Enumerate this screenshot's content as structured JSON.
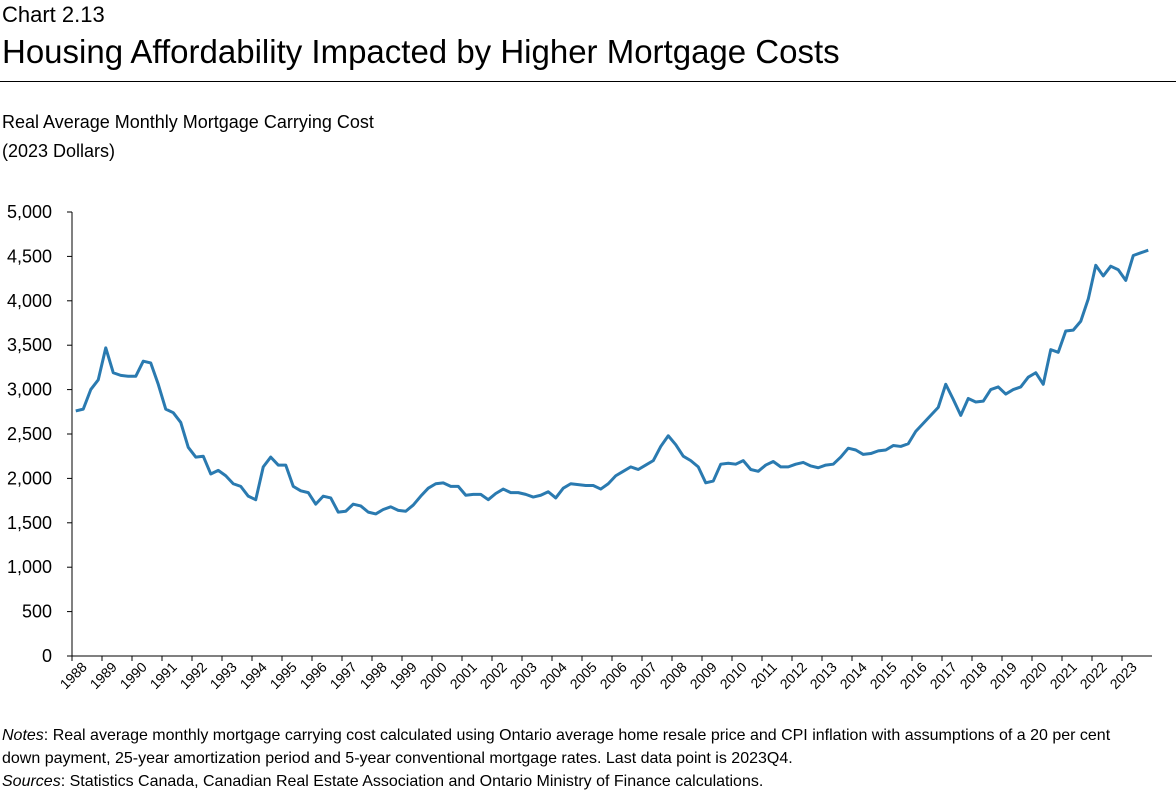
{
  "chart_data": {
    "type": "line",
    "chart_number": "Chart 2.13",
    "title": "Housing Affordability Impacted by Higher Mortgage Costs",
    "y_axis_label": "Real Average Monthly Mortgage Carrying Cost",
    "y_axis_unit": "(2023 Dollars)",
    "categories": [
      "1988",
      null,
      null,
      null,
      "1989",
      null,
      null,
      null,
      "1990",
      null,
      null,
      null,
      "1991",
      null,
      null,
      null,
      "1992",
      null,
      null,
      null,
      "1993",
      null,
      null,
      null,
      "1994",
      null,
      null,
      null,
      "1995",
      null,
      null,
      null,
      "1996",
      null,
      null,
      null,
      "1997",
      null,
      null,
      null,
      "1998",
      null,
      null,
      null,
      "1999",
      null,
      null,
      null,
      "2000",
      null,
      null,
      null,
      "2001",
      null,
      null,
      null,
      "2002",
      null,
      null,
      null,
      "2003",
      null,
      null,
      null,
      "2004",
      null,
      null,
      null,
      "2005",
      null,
      null,
      null,
      "2006",
      null,
      null,
      null,
      "2007",
      null,
      null,
      null,
      "2008",
      null,
      null,
      null,
      "2009",
      null,
      null,
      null,
      "2010",
      null,
      null,
      null,
      "2011",
      null,
      null,
      null,
      "2012",
      null,
      null,
      null,
      "2013",
      null,
      null,
      null,
      "2014",
      null,
      null,
      null,
      "2015",
      null,
      null,
      null,
      "2016",
      null,
      null,
      null,
      "2017",
      null,
      null,
      null,
      "2018",
      null,
      null,
      null,
      "2019",
      null,
      null,
      null,
      "2020",
      null,
      null,
      null,
      "2021",
      null,
      null,
      null,
      "2022",
      null,
      null,
      null,
      "2023",
      null,
      null,
      null
    ],
    "series": [
      {
        "name": "Real Average Monthly Mortgage Carrying Cost",
        "color": "#2a7ab0",
        "values": [
          2760,
          2780,
          3000,
          3110,
          3470,
          3190,
          3160,
          3150,
          3150,
          3320,
          3300,
          3060,
          2780,
          2740,
          2630,
          2350,
          2240,
          2250,
          2050,
          2090,
          2030,
          1940,
          1910,
          1800,
          1760,
          2130,
          2240,
          2150,
          2150,
          1910,
          1860,
          1840,
          1710,
          1800,
          1780,
          1620,
          1630,
          1710,
          1690,
          1620,
          1600,
          1650,
          1680,
          1640,
          1630,
          1700,
          1800,
          1890,
          1940,
          1950,
          1910,
          1910,
          1810,
          1820,
          1820,
          1760,
          1830,
          1880,
          1840,
          1840,
          1820,
          1790,
          1810,
          1850,
          1780,
          1890,
          1940,
          1930,
          1920,
          1920,
          1880,
          1940,
          2030,
          2080,
          2130,
          2100,
          2150,
          2200,
          2360,
          2480,
          2380,
          2250,
          2200,
          2130,
          1950,
          1970,
          2160,
          2170,
          2160,
          2200,
          2100,
          2080,
          2150,
          2190,
          2130,
          2130,
          2160,
          2180,
          2140,
          2120,
          2150,
          2160,
          2240,
          2340,
          2320,
          2270,
          2280,
          2310,
          2320,
          2370,
          2360,
          2390,
          2530,
          2620,
          2710,
          2800,
          3060,
          2890,
          2710,
          2900,
          2860,
          2870,
          3000,
          3030,
          2950,
          3000,
          3030,
          3140,
          3190,
          3060,
          3450,
          3420,
          3660,
          3670,
          3770,
          4020,
          4400,
          4280,
          4390,
          4350,
          4230,
          4510,
          4540,
          4570
        ]
      }
    ],
    "ylim": [
      0,
      5000
    ],
    "yticks": [
      0,
      500,
      {
        "value": 1000,
        "label": "1,000"
      },
      {
        "value": 1500,
        "label": "1,500"
      },
      {
        "value": 2000,
        "label": "2,000"
      },
      {
        "value": 2500,
        "label": "2,500"
      },
      {
        "value": 3000,
        "label": "3,000"
      },
      {
        "value": 3500,
        "label": "3,500"
      },
      {
        "value": 4000,
        "label": "4,000"
      },
      {
        "value": 4500,
        "label": "4,500"
      },
      {
        "value": 5000,
        "label": "5,000"
      }
    ],
    "grid": false,
    "notes_label": "Notes",
    "notes": ": Real average monthly mortgage carrying cost calculated using Ontario average home resale price and CPI inflation with assumptions of a 20 per cent down payment, 25-year amortization period and 5-year conventional mortgage rates. Last data point is 2023Q4.",
    "sources_label": "Sources",
    "sources": ": Statistics Canada, Canadian Real Estate Association and Ontario Ministry of Finance calculations."
  }
}
